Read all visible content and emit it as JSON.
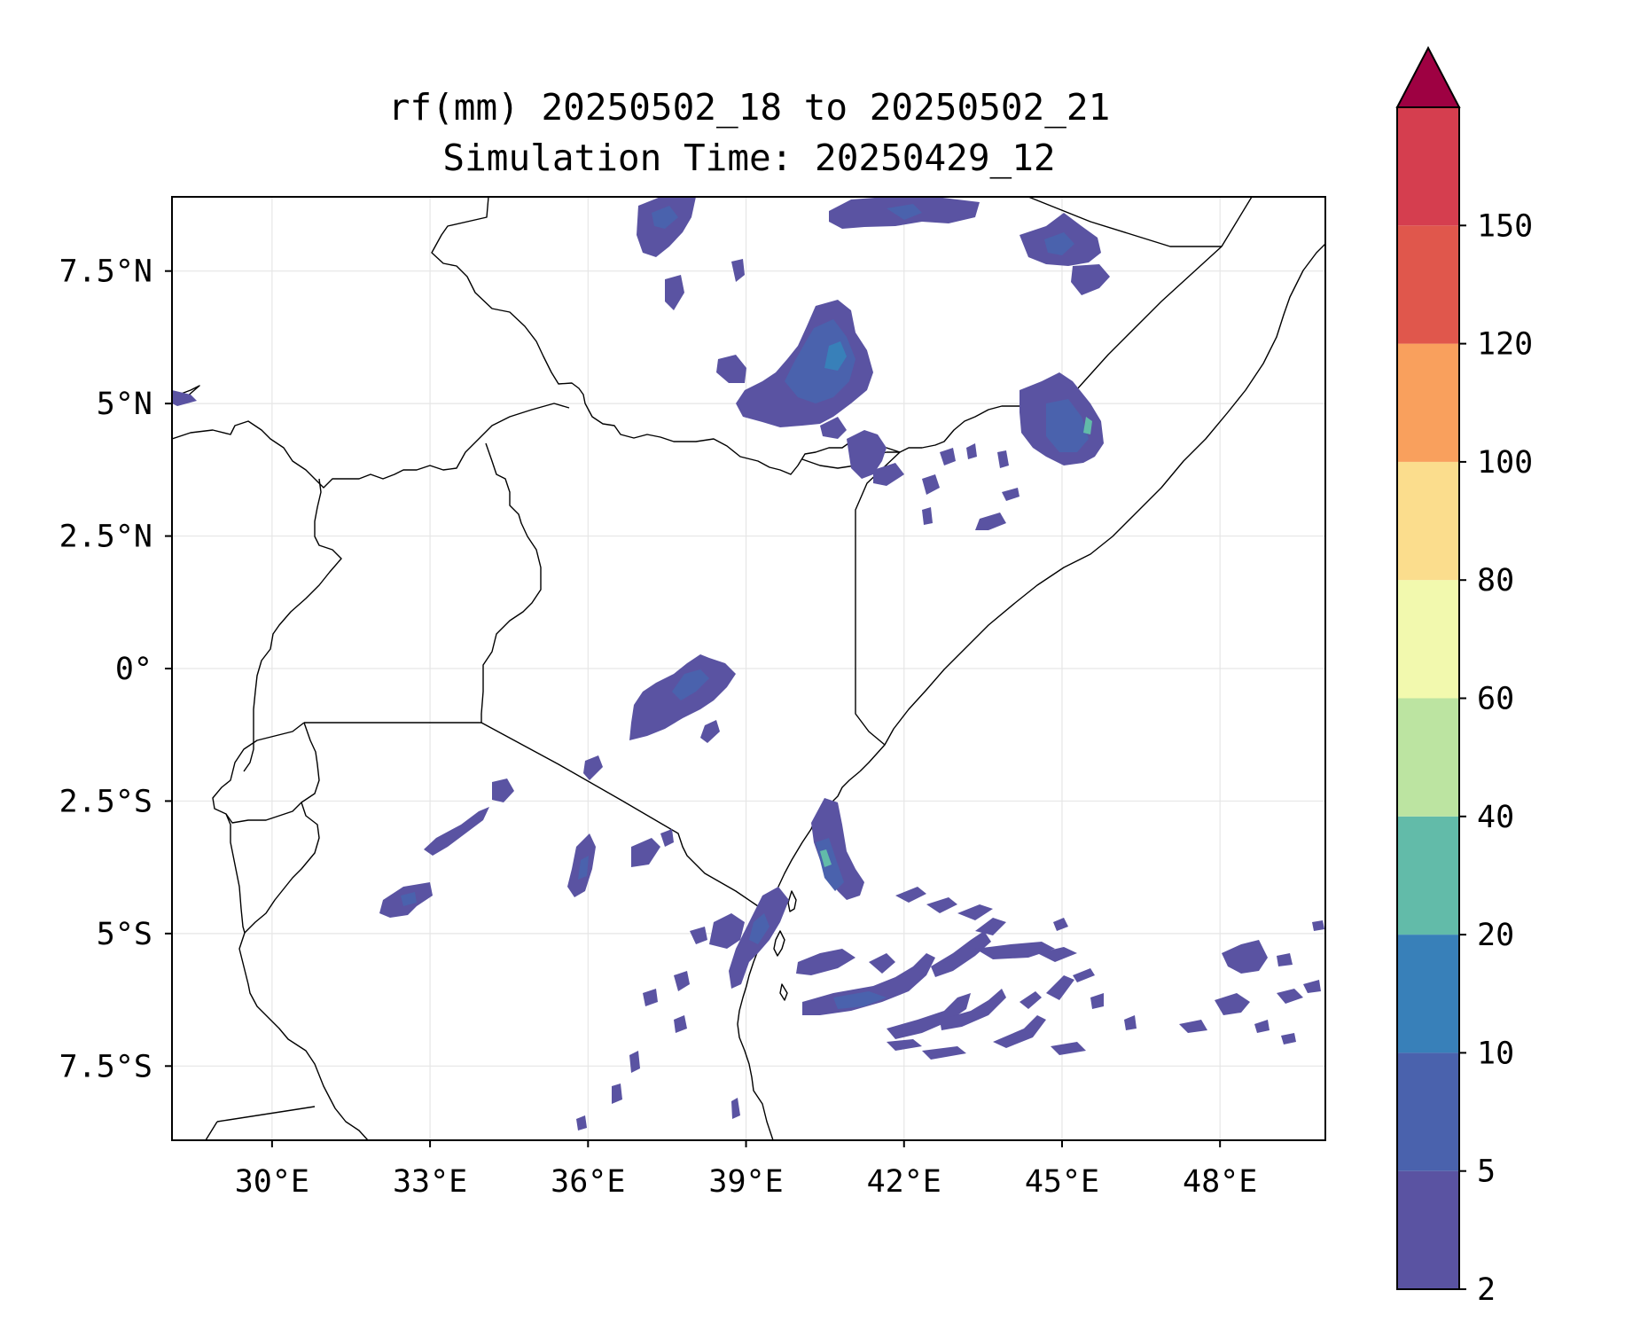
{
  "title": {
    "line1": "rf(mm) 20250502_18 to 20250502_21",
    "line2": "Simulation Time: 20250429_12"
  },
  "map": {
    "extent": {
      "lon": [
        28.1,
        50
      ],
      "lat": [
        -8.9,
        8.9
      ]
    },
    "x_ticks": [
      {
        "value": 30,
        "label": "30°E"
      },
      {
        "value": 33,
        "label": "33°E"
      },
      {
        "value": 36,
        "label": "36°E"
      },
      {
        "value": 39,
        "label": "39°E"
      },
      {
        "value": 42,
        "label": "42°E"
      },
      {
        "value": 45,
        "label": "45°E"
      },
      {
        "value": 48,
        "label": "48°E"
      }
    ],
    "y_ticks": [
      {
        "value": 7.5,
        "label": "7.5°N"
      },
      {
        "value": 5,
        "label": "5°N"
      },
      {
        "value": 2.5,
        "label": "2.5°N"
      },
      {
        "value": 0,
        "label": "0°"
      },
      {
        "value": -2.5,
        "label": "2.5°S"
      },
      {
        "value": -5,
        "label": "5°S"
      },
      {
        "value": -7.5,
        "label": "7.5°S"
      }
    ],
    "grid": true,
    "borders_color": "#000000"
  },
  "colorbar": {
    "orientation": "vertical",
    "position": "right",
    "levels": [
      2,
      5,
      10,
      20,
      40,
      60,
      80,
      100,
      120,
      150
    ],
    "labels": [
      "2",
      "5",
      "10",
      "20",
      "40",
      "60",
      "80",
      "100",
      "120",
      "150"
    ],
    "colors": [
      "#5a53a2",
      "#4a62ad",
      "#3880b9",
      "#62bba9",
      "#bce4a1",
      "#f2f9ae",
      "#fbdd8d",
      "#f9a05d",
      "#e0574c",
      "#d53e4f"
    ],
    "extend_color": "#9e0142",
    "extend": "max"
  },
  "rain_colors": {
    "c1": "#5a53a2",
    "c2": "#4a62ad",
    "c3": "#3880b9",
    "c4": "#62bba9"
  }
}
